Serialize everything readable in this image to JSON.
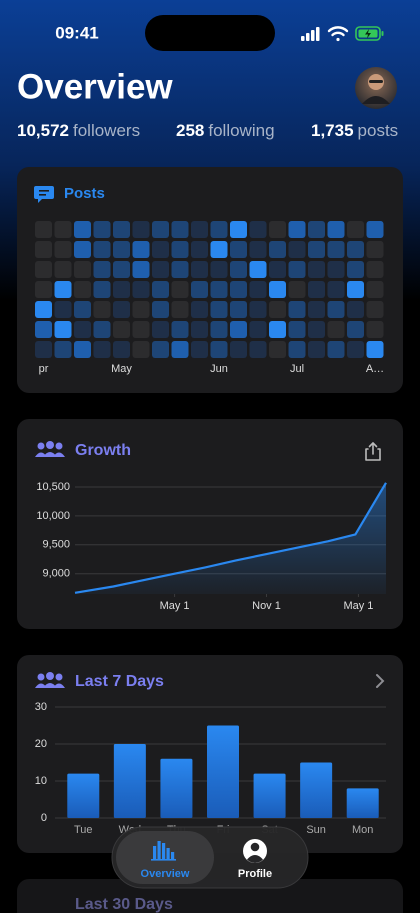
{
  "status_bar": {
    "time": "09:41"
  },
  "header": {
    "title": "Overview"
  },
  "stats": [
    {
      "value": "10,572",
      "label": "followers"
    },
    {
      "value": "258",
      "label": "following"
    },
    {
      "value": "1,735",
      "label": "posts"
    }
  ],
  "chart_data": [
    {
      "type": "heatmap",
      "title": "Posts",
      "x_labels": [
        "pr",
        null,
        null,
        null,
        "May",
        null,
        null,
        null,
        null,
        "Jun",
        null,
        null,
        null,
        "Jul",
        null,
        null,
        null,
        "A…"
      ],
      "colors": [
        "#2c2c2e",
        "#1f2f48",
        "#1e4576",
        "#1f5fae",
        "#2a88f0"
      ],
      "values": [
        [
          0,
          0,
          3,
          2,
          2,
          1,
          2,
          2,
          1,
          2,
          4,
          1,
          0,
          3,
          2,
          3,
          0,
          3
        ],
        [
          0,
          0,
          3,
          2,
          2,
          3,
          1,
          2,
          1,
          4,
          2,
          1,
          2,
          1,
          2,
          2,
          2,
          0
        ],
        [
          0,
          0,
          0,
          2,
          2,
          3,
          1,
          2,
          1,
          1,
          2,
          4,
          1,
          2,
          1,
          1,
          2,
          0
        ],
        [
          0,
          4,
          0,
          2,
          1,
          1,
          2,
          0,
          2,
          2,
          2,
          1,
          4,
          0,
          1,
          1,
          4,
          0
        ],
        [
          4,
          1,
          2,
          0,
          1,
          0,
          2,
          0,
          1,
          2,
          2,
          1,
          0,
          2,
          1,
          2,
          1,
          0
        ],
        [
          3,
          4,
          1,
          2,
          0,
          0,
          1,
          2,
          1,
          2,
          3,
          1,
          4,
          2,
          1,
          0,
          2,
          0
        ],
        [
          1,
          2,
          3,
          1,
          1,
          0,
          2,
          3,
          1,
          2,
          1,
          1,
          0,
          2,
          1,
          2,
          1,
          4
        ]
      ]
    },
    {
      "type": "line",
      "title": "Growth",
      "x": [
        -6.5,
        -4,
        -2,
        0,
        2,
        4,
        6,
        8,
        10,
        11.8,
        13.8
      ],
      "values": [
        8670,
        8780,
        8890,
        9000,
        9110,
        9230,
        9340,
        9450,
        9560,
        9680,
        10572
      ],
      "color": "#2a88f0",
      "xlim": [
        -6.5,
        13.8
      ],
      "xticks": [
        {
          "value": 0,
          "label": "May 1"
        },
        {
          "value": 6,
          "label": "Nov 1"
        },
        {
          "value": 12,
          "label": "May 1"
        }
      ],
      "ylim": [
        8650,
        10620
      ],
      "yticks": [
        {
          "value": 9000,
          "label": "9,000"
        },
        {
          "value": 9500,
          "label": "9,500"
        },
        {
          "value": 10000,
          "label": "10,000"
        },
        {
          "value": 10500,
          "label": "10,500"
        }
      ],
      "grid": true
    },
    {
      "type": "bar",
      "title": "Last 7 Days",
      "categories": [
        "Tue",
        "Wed",
        "Thu",
        "Fri",
        "Sat",
        "Sun",
        "Mon"
      ],
      "values": [
        12,
        20,
        16,
        25,
        12,
        15,
        8
      ],
      "color": "#2a80ee",
      "ylim": [
        0,
        30
      ],
      "yticks": [
        0,
        10,
        20,
        30
      ],
      "grid": true
    }
  ],
  "tab_bar": {
    "items": [
      "Overview",
      "Profile"
    ]
  },
  "next_card": {
    "title": "Last 30 Days"
  }
}
